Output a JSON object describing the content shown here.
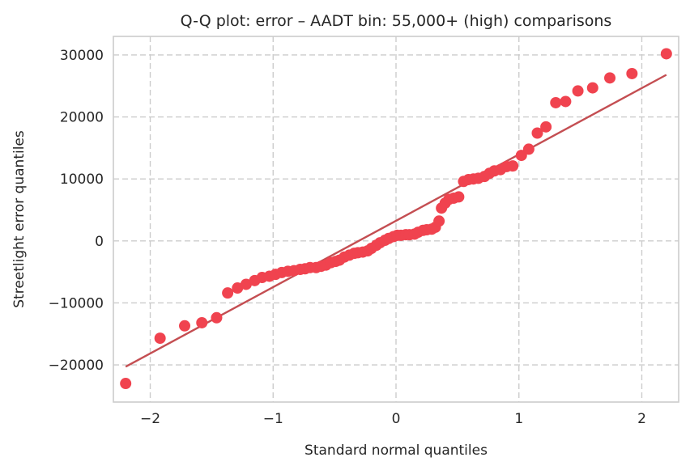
{
  "chart_data": {
    "type": "scatter",
    "title": "Q-Q plot: error – AADT bin: 55,000+ (high) comparisons",
    "xlabel": "Standard normal quantiles",
    "ylabel": "Streetlight error quantiles",
    "xlim": [
      -2.3,
      2.3
    ],
    "ylim": [
      -26000,
      33000
    ],
    "xticks": [
      -2,
      -1,
      0,
      1,
      2
    ],
    "xtick_labels": [
      "−2",
      "−1",
      "0",
      "1",
      "2"
    ],
    "yticks": [
      -20000,
      -10000,
      0,
      10000,
      20000,
      30000
    ],
    "ytick_labels": [
      "−20000",
      "−10000",
      "0",
      "10000",
      "20000",
      "30000"
    ],
    "grid": true,
    "reference_line": {
      "x": [
        -2.2,
        2.2
      ],
      "y": [
        -20300,
        26800
      ]
    },
    "points": [
      [
        -2.2,
        -23000
      ],
      [
        -1.92,
        -15700
      ],
      [
        -1.72,
        -13700
      ],
      [
        -1.58,
        -13200
      ],
      [
        -1.46,
        -12400
      ],
      [
        -1.37,
        -8400
      ],
      [
        -1.29,
        -7600
      ],
      [
        -1.22,
        -7000
      ],
      [
        -1.15,
        -6400
      ],
      [
        -1.09,
        -5900
      ],
      [
        -1.03,
        -5700
      ],
      [
        -0.98,
        -5400
      ],
      [
        -0.93,
        -5100
      ],
      [
        -0.88,
        -4900
      ],
      [
        -0.83,
        -4800
      ],
      [
        -0.78,
        -4600
      ],
      [
        -0.74,
        -4500
      ],
      [
        -0.7,
        -4300
      ],
      [
        -0.65,
        -4300
      ],
      [
        -0.61,
        -4100
      ],
      [
        -0.57,
        -3900
      ],
      [
        -0.53,
        -3500
      ],
      [
        -0.49,
        -3300
      ],
      [
        -0.46,
        -3100
      ],
      [
        -0.42,
        -2600
      ],
      [
        -0.38,
        -2300
      ],
      [
        -0.34,
        -2000
      ],
      [
        -0.31,
        -1900
      ],
      [
        -0.27,
        -1800
      ],
      [
        -0.23,
        -1600
      ],
      [
        -0.2,
        -1200
      ],
      [
        -0.16,
        -700
      ],
      [
        -0.13,
        -300
      ],
      [
        -0.09,
        100
      ],
      [
        -0.06,
        400
      ],
      [
        -0.02,
        700
      ],
      [
        0.01,
        900
      ],
      [
        0.04,
        900
      ],
      [
        0.08,
        1000
      ],
      [
        0.11,
        1000
      ],
      [
        0.15,
        1100
      ],
      [
        0.18,
        1400
      ],
      [
        0.22,
        1700
      ],
      [
        0.25,
        1800
      ],
      [
        0.29,
        1900
      ],
      [
        0.32,
        2200
      ],
      [
        0.35,
        3200
      ],
      [
        0.37,
        5300
      ],
      [
        0.4,
        6100
      ],
      [
        0.43,
        6700
      ],
      [
        0.47,
        6900
      ],
      [
        0.51,
        7100
      ],
      [
        0.55,
        9600
      ],
      [
        0.59,
        9900
      ],
      [
        0.63,
        10000
      ],
      [
        0.67,
        10100
      ],
      [
        0.72,
        10400
      ],
      [
        0.76,
        10900
      ],
      [
        0.8,
        11300
      ],
      [
        0.85,
        11500
      ],
      [
        0.9,
        12000
      ],
      [
        0.95,
        12100
      ],
      [
        1.02,
        13800
      ],
      [
        1.08,
        14800
      ],
      [
        1.15,
        17400
      ],
      [
        1.22,
        18400
      ],
      [
        1.3,
        22300
      ],
      [
        1.38,
        22500
      ],
      [
        1.48,
        24200
      ],
      [
        1.6,
        24700
      ],
      [
        1.74,
        26300
      ],
      [
        1.92,
        27000
      ],
      [
        2.2,
        30200
      ]
    ]
  }
}
